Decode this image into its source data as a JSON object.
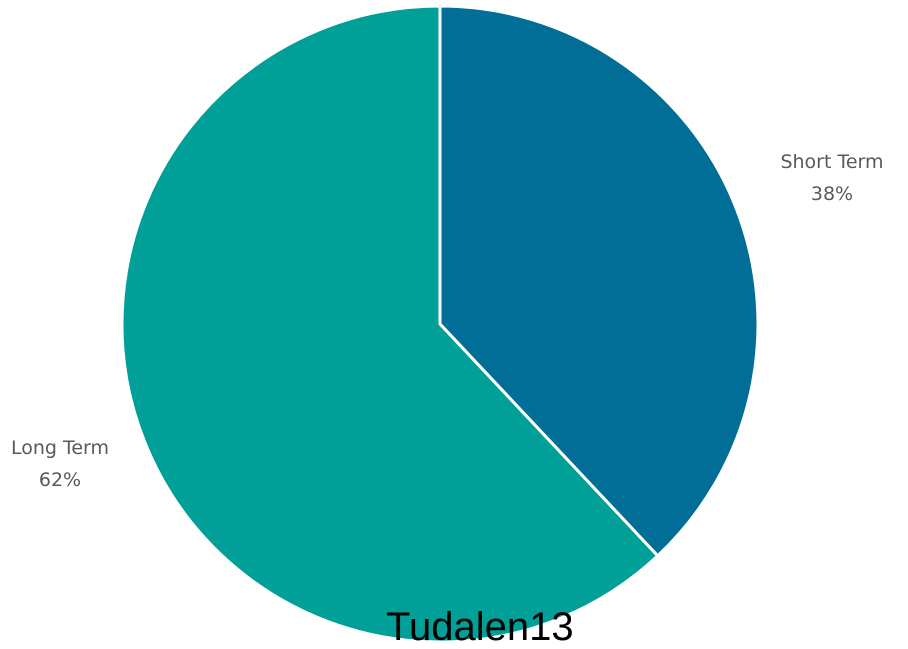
{
  "chart_data": {
    "type": "pie",
    "slices": [
      {
        "label": "Short Term",
        "value": 38,
        "display": "38%",
        "color": "#006E96"
      },
      {
        "label": "Long Term",
        "value": 62,
        "display": "62%",
        "color": "#00A099"
      }
    ],
    "start_angle_deg": 0,
    "direction": "clockwise",
    "separator_color": "#ffffff"
  },
  "footer": {
    "text": "Tudalen13"
  }
}
